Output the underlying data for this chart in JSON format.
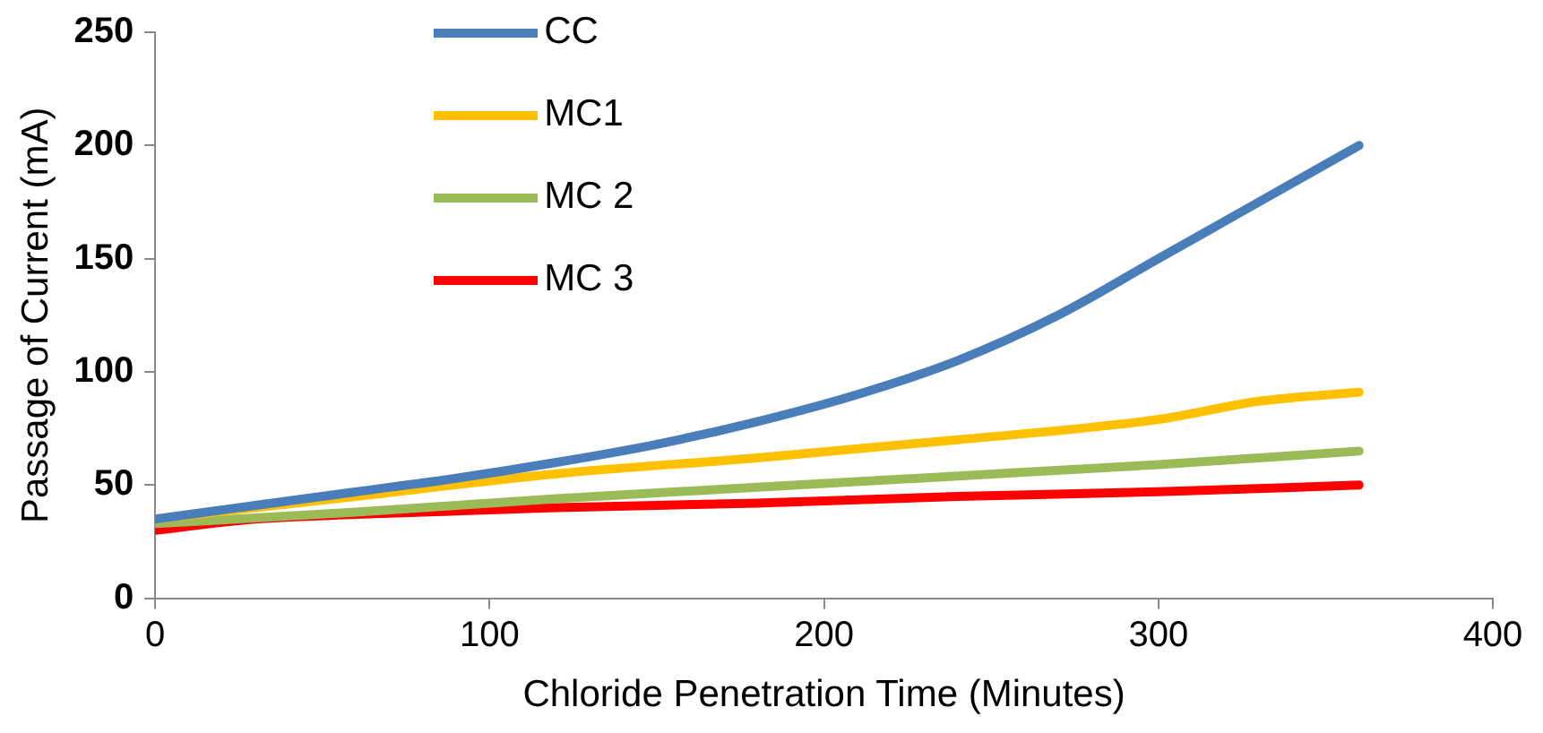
{
  "chart_data": {
    "type": "line",
    "xlabel": "Chloride Penetration Time (Minutes)",
    "ylabel": "Passage of Current (mA)",
    "xlim": [
      0,
      400
    ],
    "xticks": [
      0,
      100,
      200,
      300,
      400
    ],
    "ylim": [
      0,
      250
    ],
    "yticks": [
      0,
      50,
      100,
      150,
      200,
      250
    ],
    "grid": false,
    "legend": "top left",
    "marker": "none",
    "line_style": "solid",
    "series": [
      {
        "name": "CC",
        "color": "#4a7ebb",
        "x": [
          0,
          30,
          60,
          90,
          120,
          150,
          180,
          210,
          240,
          270,
          300,
          330,
          360
        ],
        "values": [
          35,
          41,
          47,
          53,
          60,
          68,
          78,
          90,
          105,
          125,
          150,
          175,
          200
        ]
      },
      {
        "name": "MC1",
        "color": "#ffc000",
        "x": [
          0,
          60,
          120,
          180,
          240,
          300,
          330,
          360
        ],
        "values": [
          35,
          45,
          55,
          62,
          70,
          79,
          87,
          91
        ]
      },
      {
        "name": "MC 2",
        "color": "#9bbb59",
        "x": [
          0,
          60,
          120,
          180,
          240,
          300,
          360
        ],
        "values": [
          33,
          38,
          44,
          49,
          54,
          59,
          65
        ]
      },
      {
        "name": "MC 3",
        "color": "#ff0000",
        "x": [
          0,
          30,
          60,
          120,
          180,
          240,
          300,
          360
        ],
        "values": [
          30,
          35,
          37,
          40,
          42,
          45,
          47,
          50
        ]
      }
    ]
  }
}
